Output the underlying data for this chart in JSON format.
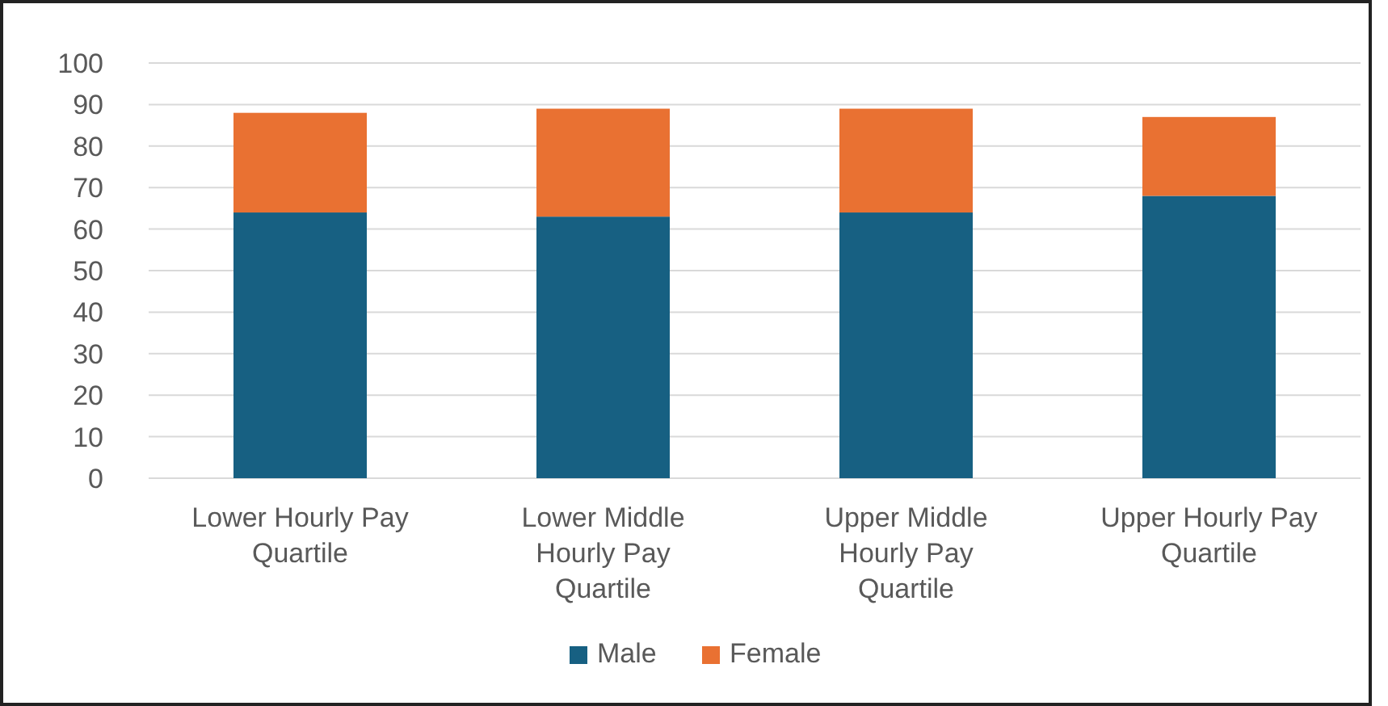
{
  "chart_data": {
    "type": "bar",
    "stacked": true,
    "categories": [
      "Lower Hourly Pay Quartile",
      "Lower Middle Hourly Pay Quartile",
      "Upper Middle Hourly Pay Quartile",
      "Upper Hourly Pay Quartile"
    ],
    "series": [
      {
        "name": "Male",
        "color": "#176082",
        "values": [
          64,
          63,
          64,
          68
        ]
      },
      {
        "name": "Female",
        "color": "#e97132",
        "values": [
          24,
          26,
          25,
          19
        ]
      }
    ],
    "ylim": [
      0,
      100
    ],
    "yticks": [
      0,
      10,
      20,
      30,
      40,
      50,
      60,
      70,
      80,
      90,
      100
    ],
    "grid": "y",
    "legend": "bottom"
  }
}
